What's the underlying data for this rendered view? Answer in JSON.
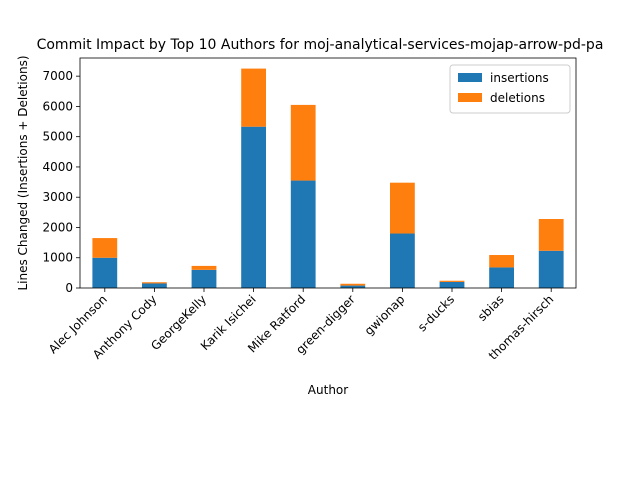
{
  "chart_data": {
    "type": "bar",
    "stacked": true,
    "title": "Commit Impact by Top 10 Authors for moj-analytical-services-mojap-arrow-pd-pa",
    "xlabel": "Author",
    "ylabel": "Lines Changed (Insertions + Deletions)",
    "categories": [
      "Alec Johnson",
      "Anthony Cody",
      "GeorgeKelly",
      "Karik Isichei",
      "Mike Ratford",
      "green-digger",
      "gwionap",
      "s-ducks",
      "sbias",
      "thomas-hirsch"
    ],
    "series": [
      {
        "name": "insertions",
        "color": "#1f77b4",
        "values": [
          1000,
          150,
          600,
          5330,
          3550,
          80,
          1800,
          200,
          680,
          1230
        ]
      },
      {
        "name": "deletions",
        "color": "#ff7f0e",
        "values": [
          650,
          40,
          130,
          1920,
          2500,
          60,
          1680,
          40,
          410,
          1050
        ]
      }
    ],
    "ylim": [
      0,
      7600
    ],
    "yticks": [
      0,
      1000,
      2000,
      3000,
      4000,
      5000,
      6000,
      7000
    ],
    "legend_position": "top-right",
    "grid": false
  }
}
